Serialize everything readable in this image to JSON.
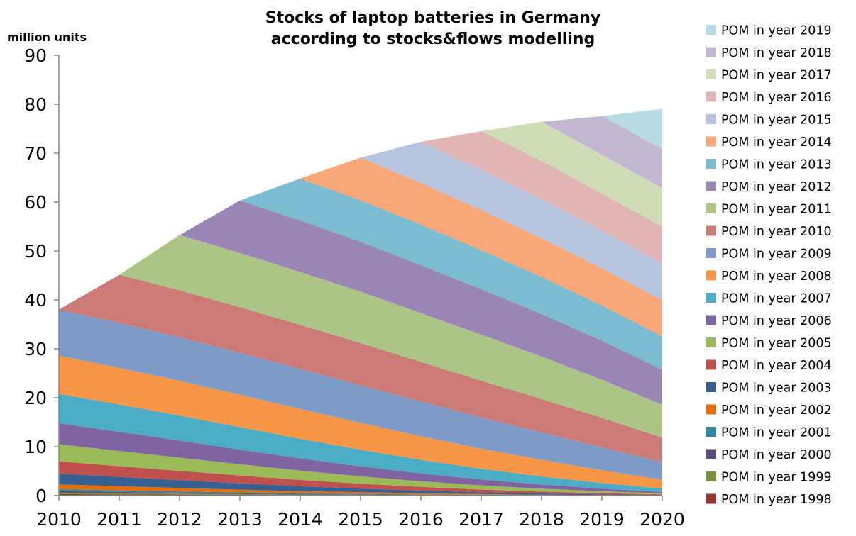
{
  "chart_data": {
    "type": "area",
    "stacked": true,
    "title_line1": "Stocks of laptop batteries in Germany",
    "title_line2": "according to stocks&flows modelling",
    "ylabel": "million units",
    "xlabel": "",
    "x": [
      "2010",
      "2011",
      "2012",
      "2013",
      "2014",
      "2015",
      "2016",
      "2017",
      "2018",
      "2019",
      "2020"
    ],
    "ylim": [
      0,
      90
    ],
    "yticks": [
      0,
      10,
      20,
      30,
      40,
      50,
      60,
      70,
      80,
      90
    ],
    "grid": false,
    "legend_position": "right",
    "series": [
      {
        "name": "POM in year 1998",
        "color": "#953735",
        "values": [
          0.3,
          0.25,
          0.2,
          0.15,
          0.1,
          0.08,
          0.05,
          0.03,
          0.02,
          0.01,
          0.0
        ]
      },
      {
        "name": "POM in year 1999",
        "color": "#77933C",
        "values": [
          0.3,
          0.25,
          0.2,
          0.15,
          0.12,
          0.09,
          0.06,
          0.04,
          0.02,
          0.01,
          0.0
        ]
      },
      {
        "name": "POM in year 2000",
        "color": "#5F497A",
        "values": [
          0.3,
          0.25,
          0.2,
          0.16,
          0.12,
          0.09,
          0.06,
          0.04,
          0.02,
          0.01,
          0.0
        ]
      },
      {
        "name": "POM in year 2001",
        "color": "#31859C",
        "values": [
          0.4,
          0.32,
          0.26,
          0.2,
          0.15,
          0.11,
          0.08,
          0.05,
          0.03,
          0.02,
          0.01
        ]
      },
      {
        "name": "POM in year 2002",
        "color": "#E46C0A",
        "values": [
          1.0,
          0.85,
          0.7,
          0.55,
          0.42,
          0.31,
          0.22,
          0.15,
          0.1,
          0.06,
          0.03
        ]
      },
      {
        "name": "POM in year 2003",
        "color": "#376092",
        "values": [
          2.2,
          1.9,
          1.6,
          1.3,
          1.0,
          0.75,
          0.55,
          0.38,
          0.25,
          0.15,
          0.08
        ]
      },
      {
        "name": "POM in year 2004",
        "color": "#C0504D",
        "values": [
          2.5,
          2.2,
          1.9,
          1.6,
          1.3,
          1.0,
          0.75,
          0.55,
          0.38,
          0.24,
          0.13
        ]
      },
      {
        "name": "POM in year 2005",
        "color": "#9BBB59",
        "values": [
          3.5,
          3.1,
          2.7,
          2.3,
          1.9,
          1.5,
          1.15,
          0.85,
          0.6,
          0.38,
          0.2
        ]
      },
      {
        "name": "POM in year 2006",
        "color": "#8064A2",
        "values": [
          4.3,
          3.9,
          3.5,
          3.0,
          2.5,
          2.05,
          1.6,
          1.2,
          0.85,
          0.55,
          0.3
        ]
      },
      {
        "name": "POM in year 2007",
        "color": "#4BACC6",
        "values": [
          6.0,
          5.6,
          5.1,
          4.6,
          4.0,
          3.4,
          2.8,
          2.2,
          1.65,
          1.15,
          0.7
        ]
      },
      {
        "name": "POM in year 2008",
        "color": "#F79646",
        "values": [
          7.8,
          7.5,
          7.1,
          6.6,
          6.1,
          5.5,
          4.8,
          4.1,
          3.4,
          2.6,
          1.8
        ]
      },
      {
        "name": "POM in year 2009",
        "color": "#7E9BC8",
        "values": [
          9.4,
          9.2,
          8.9,
          8.6,
          8.2,
          7.7,
          7.1,
          6.4,
          5.6,
          4.7,
          3.6
        ]
      },
      {
        "name": "POM in year 2010",
        "color": "#CB7A78",
        "values": [
          0,
          9.8,
          9.6,
          9.3,
          9.0,
          8.6,
          8.1,
          7.5,
          6.8,
          6.0,
          5.0
        ]
      },
      {
        "name": "POM in year 2011",
        "color": "#ACC486",
        "values": [
          0,
          0,
          11.3,
          11.1,
          10.8,
          10.5,
          10.0,
          9.4,
          8.7,
          7.8,
          6.7
        ]
      },
      {
        "name": "POM in year 2012",
        "color": "#9A86B4",
        "values": [
          0,
          0,
          0,
          10.7,
          10.5,
          10.2,
          9.8,
          9.3,
          8.7,
          8.0,
          7.2
        ]
      },
      {
        "name": "POM in year 2013",
        "color": "#7CBCD1",
        "values": [
          0,
          0,
          0,
          0,
          8.6,
          8.5,
          8.3,
          8.0,
          7.6,
          7.2,
          6.8
        ]
      },
      {
        "name": "POM in year 2014",
        "color": "#F8A878",
        "values": [
          0,
          0,
          0,
          0,
          0,
          8.7,
          8.5,
          8.2,
          7.9,
          7.6,
          7.4
        ]
      },
      {
        "name": "POM in year 2015",
        "color": "#B7C4DE",
        "values": [
          0,
          0,
          0,
          0,
          0,
          0,
          8.4,
          8.2,
          8.0,
          7.7,
          7.5
        ]
      },
      {
        "name": "POM in year 2016",
        "color": "#E0B5B4",
        "values": [
          0,
          0,
          0,
          0,
          0,
          0,
          0,
          7.9,
          7.8,
          7.6,
          7.5
        ]
      },
      {
        "name": "POM in year 2017",
        "color": "#CFDDB7",
        "values": [
          0,
          0,
          0,
          0,
          0,
          0,
          0,
          0,
          8.0,
          7.9,
          7.9
        ]
      },
      {
        "name": "POM in year 2018",
        "color": "#C3B6D1",
        "values": [
          0,
          0,
          0,
          0,
          0,
          0,
          0,
          0,
          0,
          7.9,
          8.0
        ]
      },
      {
        "name": "POM in year 2019",
        "color": "#B7DBE4",
        "values": [
          0,
          0,
          0,
          0,
          0,
          0,
          0,
          0,
          0,
          0,
          8.2
        ]
      }
    ]
  }
}
